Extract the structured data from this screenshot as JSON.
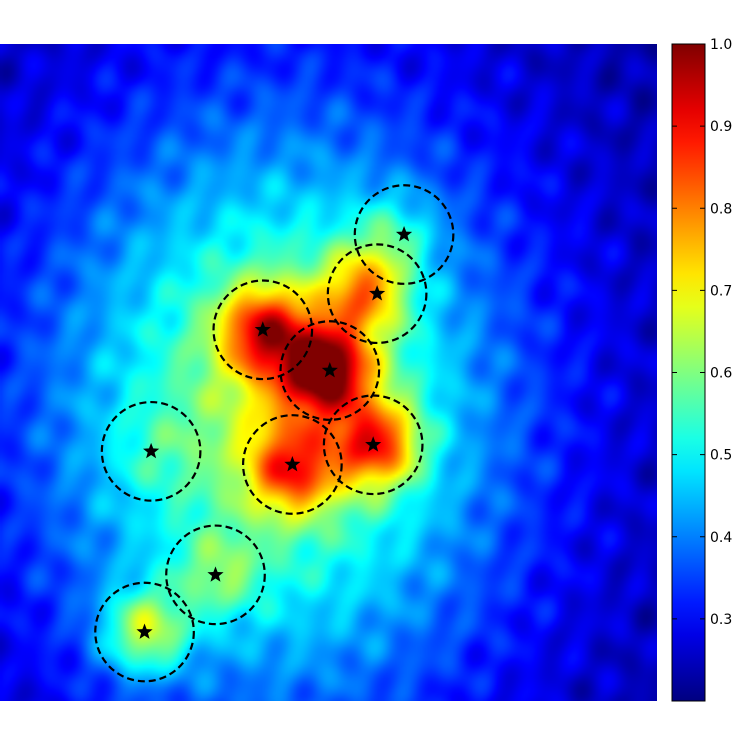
{
  "chart_data": {
    "type": "heatmap",
    "title": "",
    "xlabel": "",
    "ylabel": "",
    "colormap": "jet",
    "value_range": [
      0.2,
      1.0
    ],
    "colorbar": {
      "ticks": [
        0.3,
        0.4,
        0.5,
        0.6,
        0.7,
        0.8,
        0.9,
        1.0
      ],
      "tick_labels": [
        "0.3",
        "0.4",
        "0.5",
        "0.6",
        "0.7",
        "0.8",
        "0.9",
        "1.0"
      ]
    },
    "hotspots": [
      {
        "x": 0.495,
        "y": 0.495,
        "value": 0.97
      },
      {
        "x": 0.4,
        "y": 0.435,
        "value": 0.85
      },
      {
        "x": 0.555,
        "y": 0.375,
        "value": 0.8
      },
      {
        "x": 0.575,
        "y": 0.61,
        "value": 0.86
      },
      {
        "x": 0.445,
        "y": 0.65,
        "value": 0.8
      },
      {
        "x": 0.22,
        "y": 0.895,
        "value": 0.8
      },
      {
        "x": 0.6,
        "y": 0.29,
        "value": 0.62
      },
      {
        "x": 0.23,
        "y": 0.62,
        "value": 0.55
      },
      {
        "x": 0.33,
        "y": 0.81,
        "value": 0.64
      }
    ],
    "markers": [
      {
        "x": 0.615,
        "y": 0.29
      },
      {
        "x": 0.574,
        "y": 0.38
      },
      {
        "x": 0.4,
        "y": 0.435
      },
      {
        "x": 0.502,
        "y": 0.497
      },
      {
        "x": 0.23,
        "y": 0.62
      },
      {
        "x": 0.568,
        "y": 0.61
      },
      {
        "x": 0.445,
        "y": 0.64
      },
      {
        "x": 0.328,
        "y": 0.808
      },
      {
        "x": 0.22,
        "y": 0.895
      }
    ],
    "circle_radius": 0.075,
    "grid": false
  }
}
